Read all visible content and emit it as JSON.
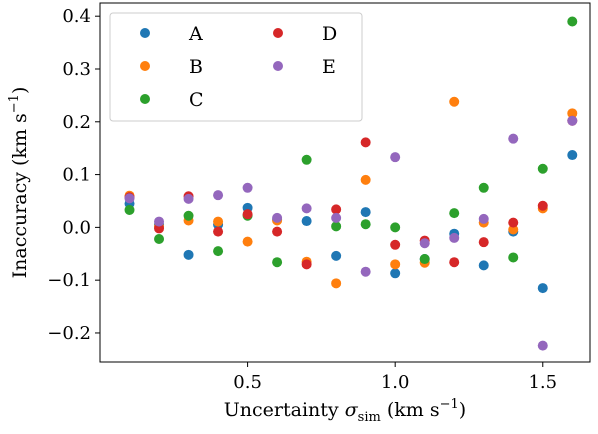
{
  "chart_data": {
    "type": "scatter",
    "xlabel": "Uncertainty σsim (km s−1)",
    "xlabel_parts": {
      "prefix": "Uncertainty ",
      "sigma": "σ",
      "sub": "sim",
      "unit_open": " (km s",
      "exp": "−1",
      "unit_close": ")"
    },
    "ylabel": "Inaccuracy (km s−1)",
    "ylabel_parts": {
      "prefix": "Inaccuracy (km s",
      "exp": "−1",
      "suffix": ")"
    },
    "xlim": [
      0.0,
      1.66
    ],
    "ylim": [
      -0.255,
      0.425
    ],
    "xticks": [
      0.5,
      1.0,
      1.5
    ],
    "xtick_labels": [
      "0.5",
      "1.0",
      "1.5"
    ],
    "yticks": [
      -0.2,
      -0.1,
      0.0,
      0.1,
      0.2,
      0.3,
      0.4
    ],
    "ytick_labels": [
      "−0.2",
      "−0.1",
      "0.0",
      "0.1",
      "0.2",
      "0.3",
      "0.4"
    ],
    "grid": false,
    "legend_position": "top-left",
    "series": [
      {
        "name": "A",
        "color": "#1f77b4",
        "x": [
          0.1,
          0.2,
          0.3,
          0.4,
          0.5,
          0.6,
          0.7,
          0.8,
          0.9,
          1.0,
          1.1,
          1.2,
          1.3,
          1.4,
          1.5,
          1.6
        ],
        "y": [
          0.045,
          0.005,
          -0.052,
          0.005,
          0.037,
          0.015,
          0.012,
          -0.054,
          0.029,
          -0.087,
          -0.06,
          -0.012,
          -0.072,
          -0.008,
          -0.115,
          0.137
        ]
      },
      {
        "name": "B",
        "color": "#ff7f0e",
        "x": [
          0.1,
          0.2,
          0.3,
          0.4,
          0.5,
          0.6,
          0.7,
          0.8,
          0.9,
          1.0,
          1.1,
          1.2,
          1.3,
          1.4,
          1.5,
          1.6
        ],
        "y": [
          0.06,
          0.001,
          0.013,
          0.011,
          -0.027,
          0.013,
          -0.065,
          -0.106,
          0.09,
          -0.07,
          -0.067,
          0.238,
          0.009,
          -0.004,
          0.036,
          0.216
        ]
      },
      {
        "name": "C",
        "color": "#2ca02c",
        "x": [
          0.1,
          0.2,
          0.3,
          0.4,
          0.5,
          0.6,
          0.7,
          0.8,
          0.9,
          1.0,
          1.1,
          1.2,
          1.3,
          1.4,
          1.5,
          1.6
        ],
        "y": [
          0.033,
          -0.022,
          0.022,
          -0.045,
          0.022,
          -0.066,
          0.128,
          0.002,
          0.006,
          0.0,
          -0.06,
          0.027,
          0.075,
          -0.057,
          0.111,
          0.39
        ]
      },
      {
        "name": "D",
        "color": "#d62728",
        "x": [
          0.1,
          0.2,
          0.3,
          0.4,
          0.5,
          0.6,
          0.7,
          0.8,
          0.9,
          1.0,
          1.1,
          1.2,
          1.3,
          1.4,
          1.5,
          1.6
        ],
        "y": [
          0.057,
          -0.002,
          0.059,
          -0.008,
          0.025,
          -0.008,
          -0.07,
          0.034,
          0.161,
          -0.033,
          -0.025,
          -0.066,
          -0.028,
          0.009,
          0.041,
          0.202
        ]
      },
      {
        "name": "E",
        "color": "#9467bd",
        "x": [
          0.1,
          0.2,
          0.3,
          0.4,
          0.5,
          0.6,
          0.7,
          0.8,
          0.9,
          1.0,
          1.1,
          1.2,
          1.3,
          1.4,
          1.5,
          1.6
        ],
        "y": [
          0.055,
          0.011,
          0.054,
          0.061,
          0.075,
          0.018,
          0.036,
          0.018,
          -0.084,
          0.133,
          -0.03,
          -0.02,
          0.016,
          0.168,
          -0.224,
          0.202
        ]
      }
    ]
  }
}
